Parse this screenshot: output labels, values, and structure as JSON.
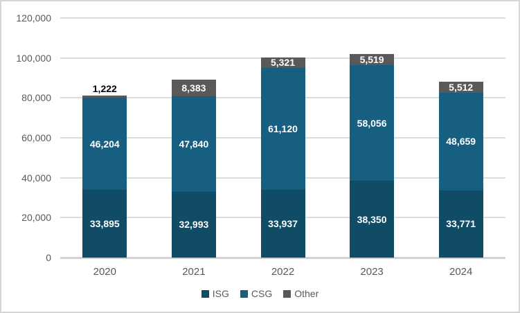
{
  "chart_data": {
    "type": "bar",
    "stacked": true,
    "title": "",
    "xlabel": "",
    "ylabel": "",
    "categories": [
      "2020",
      "2021",
      "2022",
      "2023",
      "2024"
    ],
    "series": [
      {
        "name": "ISG",
        "color": "#114C66",
        "values": [
          33895,
          32993,
          33937,
          38350,
          33771
        ],
        "labels": [
          "33,895",
          "32,993",
          "33,937",
          "38,350",
          "33,771"
        ]
      },
      {
        "name": "CSG",
        "color": "#175F80",
        "values": [
          46204,
          47840,
          61120,
          58056,
          48659
        ],
        "labels": [
          "46,204",
          "47,840",
          "61,120",
          "58,056",
          "48,659"
        ]
      },
      {
        "name": "Other",
        "color": "#595959",
        "values": [
          1222,
          8383,
          5321,
          5519,
          5512
        ],
        "labels": [
          "1,222",
          "8,383",
          "5,321",
          "5,519",
          "5,512"
        ]
      }
    ],
    "ylim": [
      0,
      120000
    ],
    "ytick_interval": 20000,
    "yticks": [
      {
        "value": 0,
        "label": "0"
      },
      {
        "value": 20000,
        "label": "20,000"
      },
      {
        "value": 40000,
        "label": "40,000"
      },
      {
        "value": 60000,
        "label": "60,000"
      },
      {
        "value": 80000,
        "label": "80,000"
      },
      {
        "value": 100000,
        "label": "100,000"
      },
      {
        "value": 120000,
        "label": "120,000"
      }
    ],
    "grid": true,
    "legend_position": "bottom",
    "data_label_color_inside": "#ffffff",
    "data_label_color_outside": "#000000"
  },
  "colors": {
    "gridline": "#dbdbdb",
    "axis_line": "#d2d2d2",
    "tick_text": "#595959",
    "frame_border": "#d6d6d6",
    "background": "#ffffff"
  }
}
